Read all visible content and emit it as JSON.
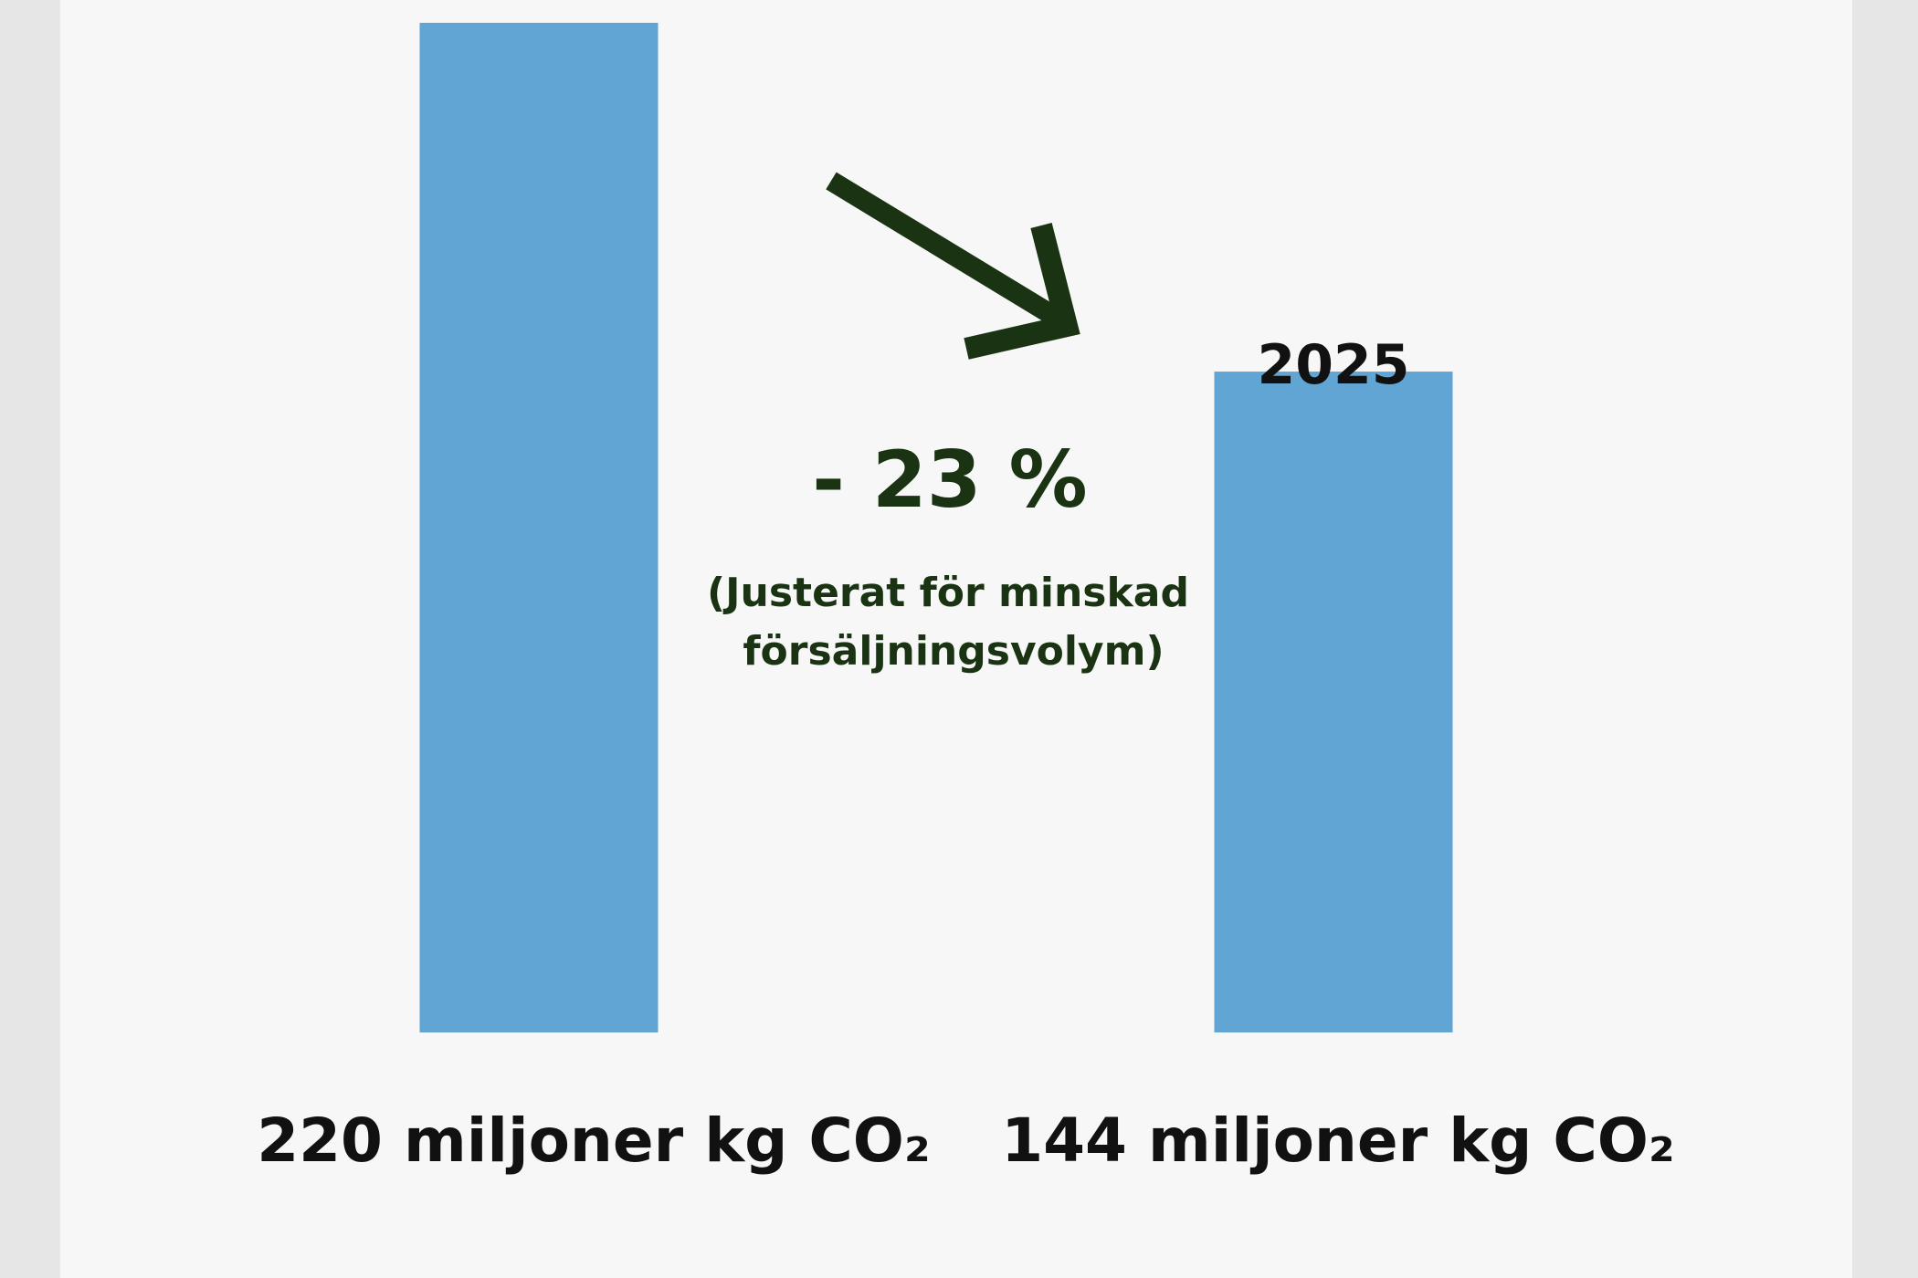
{
  "chart_data": {
    "type": "bar",
    "categories": [
      "",
      "2025"
    ],
    "values": [
      220,
      144
    ],
    "value_labels": [
      "220 miljoner kg CO₂",
      "144 miljoner kg CO₂"
    ],
    "ylim": [
      0,
      220
    ],
    "grid": false,
    "legend": "none",
    "bar_color": "#60a5d3",
    "annotations": {
      "change": "- 23 %",
      "note_line1": "(Justerat för minskad",
      "note_line2": "försäljningsvolym)",
      "arrow_color": "#1a3312"
    }
  }
}
